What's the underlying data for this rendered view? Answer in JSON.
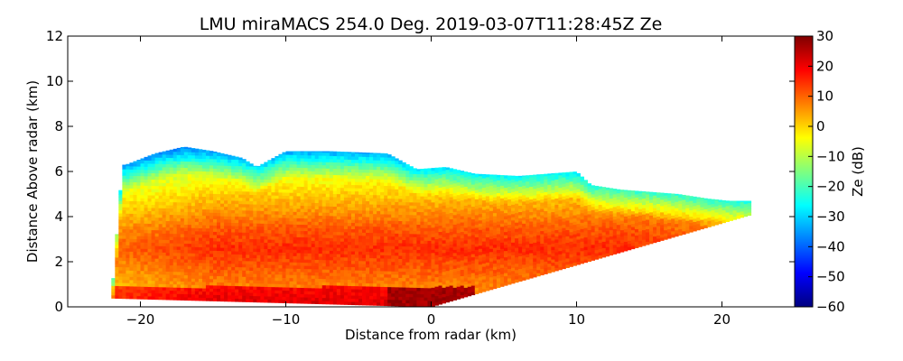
{
  "chart_data": {
    "type": "heatmap",
    "title": "LMU miraMACS 254.0 Deg. 2019-03-07T11:28:45Z  Ze",
    "xlabel": "Distance from radar (km)",
    "ylabel": "Distance Above radar  (km)",
    "xlim": [
      -25,
      25
    ],
    "ylim": [
      0,
      12
    ],
    "x_ticks": [
      -20,
      -10,
      0,
      10,
      20
    ],
    "x_tick_labels": [
      "−20",
      "−10",
      "0",
      "10",
      "20"
    ],
    "y_ticks": [
      0,
      2,
      4,
      6,
      8,
      10,
      12
    ],
    "y_tick_labels": [
      "0",
      "2",
      "4",
      "6",
      "8",
      "10",
      "12"
    ],
    "grid": false,
    "colorbar": {
      "label": "Ze (dB)",
      "range": [
        -60,
        30
      ],
      "ticks": [
        30,
        20,
        10,
        0,
        -10,
        -20,
        -30,
        -40,
        -50,
        -60
      ],
      "tick_labels": [
        "30",
        "20",
        "10",
        "0",
        "−10",
        "−20",
        "−30",
        "−40",
        "−50",
        "−60"
      ],
      "colormap": [
        "#00007f",
        "#0000ff",
        "#007fff",
        "#00ffff",
        "#7fff7f",
        "#ffff00",
        "#ff7f00",
        "#ff0000",
        "#7f0000"
      ]
    },
    "scan": {
      "left_range_km": 22,
      "left_elevation_start_deg": 1,
      "left_elevation_end_deg": 18,
      "right_range_km": 22,
      "right_elevation_deg": 10.5,
      "cloud_top_km": [
        [
          -21,
          6.3
        ],
        [
          -19,
          6.8
        ],
        [
          -17,
          7.1
        ],
        [
          -15,
          6.9
        ],
        [
          -13,
          6.6
        ],
        [
          -12,
          6.2
        ],
        [
          -10,
          6.9
        ],
        [
          -7,
          6.9
        ],
        [
          -3,
          6.8
        ],
        [
          -1,
          6.1
        ],
        [
          1,
          6.2
        ],
        [
          3,
          5.9
        ],
        [
          6,
          5.8
        ],
        [
          8,
          5.9
        ],
        [
          10,
          6.0
        ],
        [
          11,
          5.4
        ],
        [
          13,
          5.2
        ],
        [
          15,
          5.1
        ],
        [
          17,
          5.0
        ],
        [
          19,
          4.8
        ],
        [
          20.5,
          4.7
        ]
      ]
    }
  }
}
